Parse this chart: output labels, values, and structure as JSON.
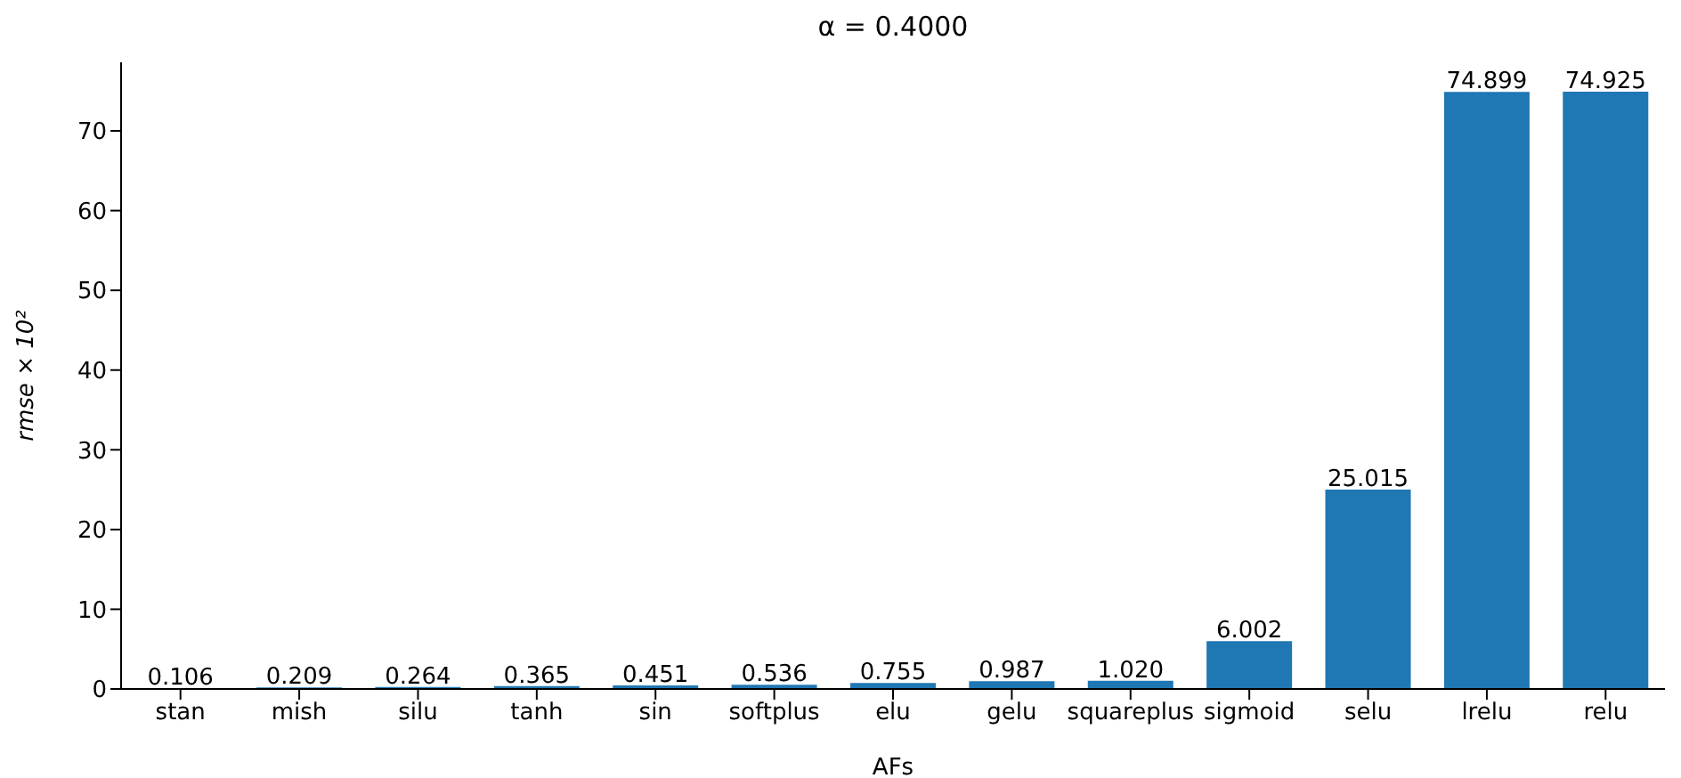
{
  "chart_data": {
    "type": "bar",
    "title": "α = 0.4000",
    "xlabel": "AFs",
    "ylabel": "rmse × 10²",
    "categories": [
      "stan",
      "mish",
      "silu",
      "tanh",
      "sin",
      "softplus",
      "elu",
      "gelu",
      "squareplus",
      "sigmoid",
      "selu",
      "lrelu",
      "relu"
    ],
    "values": [
      0.106,
      0.209,
      0.264,
      0.365,
      0.451,
      0.536,
      0.755,
      0.987,
      1.02,
      6.002,
      25.015,
      74.899,
      74.925
    ],
    "value_labels": [
      "0.106",
      "0.209",
      "0.264",
      "0.365",
      "0.451",
      "0.536",
      "0.755",
      "0.987",
      "1.020",
      "6.002",
      "25.015",
      "74.899",
      "74.925"
    ],
    "color": "#1f77b4",
    "ylim": [
      0,
      78.6
    ],
    "yticks": [
      0,
      10,
      20,
      30,
      40,
      50,
      60,
      70
    ],
    "grid": false
  }
}
